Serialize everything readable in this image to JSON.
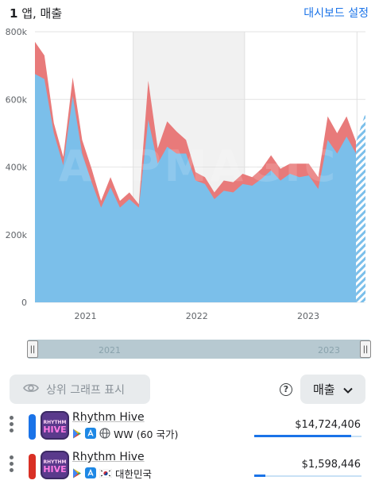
{
  "header": {
    "count": "1",
    "title_rest": " 앱, 매출",
    "dashboard_link": "대시보드 설정"
  },
  "chart_data": {
    "type": "area",
    "y_ticks": [
      "0",
      "200k",
      "400k",
      "600k",
      "800k"
    ],
    "x_ticks": [
      "2021",
      "2022",
      "2023"
    ],
    "ylim": [
      0,
      800000
    ],
    "watermark": "APPMAGIC",
    "stacked": true,
    "series": [
      {
        "color": "#7bbfea",
        "values": [
          675000,
          660000,
          500000,
          405000,
          610000,
          440000,
          355000,
          280000,
          340000,
          280000,
          305000,
          280000,
          540000,
          410000,
          460000,
          440000,
          440000,
          360000,
          350000,
          305000,
          330000,
          325000,
          350000,
          345000,
          365000,
          390000,
          360000,
          380000,
          370000,
          375000,
          335000,
          480000,
          440000,
          490000,
          440000,
          510000
        ]
      },
      {
        "color": "#e87a7a",
        "values": [
          95000,
          70000,
          30000,
          25000,
          55000,
          40000,
          40000,
          20000,
          30000,
          20000,
          20000,
          10000,
          115000,
          45000,
          75000,
          65000,
          40000,
          25000,
          20000,
          20000,
          30000,
          30000,
          30000,
          25000,
          30000,
          45000,
          35000,
          30000,
          40000,
          35000,
          35000,
          70000,
          60000,
          60000,
          35000,
          50000
        ]
      }
    ],
    "projected_last_point": true
  },
  "scrollbar": {
    "years": [
      "2021",
      "2023"
    ],
    "left_handle": "||",
    "right_handle": "||"
  },
  "controls": {
    "top_graph_label": "상위 그래프 표시",
    "help_label": "?",
    "metric_label": "매출"
  },
  "rows": [
    {
      "bar_color": "#1a73e8",
      "app_name": "Rhythm Hive",
      "region_text": "WW (60 국가)",
      "value": "$14,724,406",
      "share": 0.9
    },
    {
      "bar_color": "#d93025",
      "app_name": "Rhythm Hive",
      "region_text": "대한민국",
      "value": "$1,598,446",
      "share": 0.1
    }
  ]
}
